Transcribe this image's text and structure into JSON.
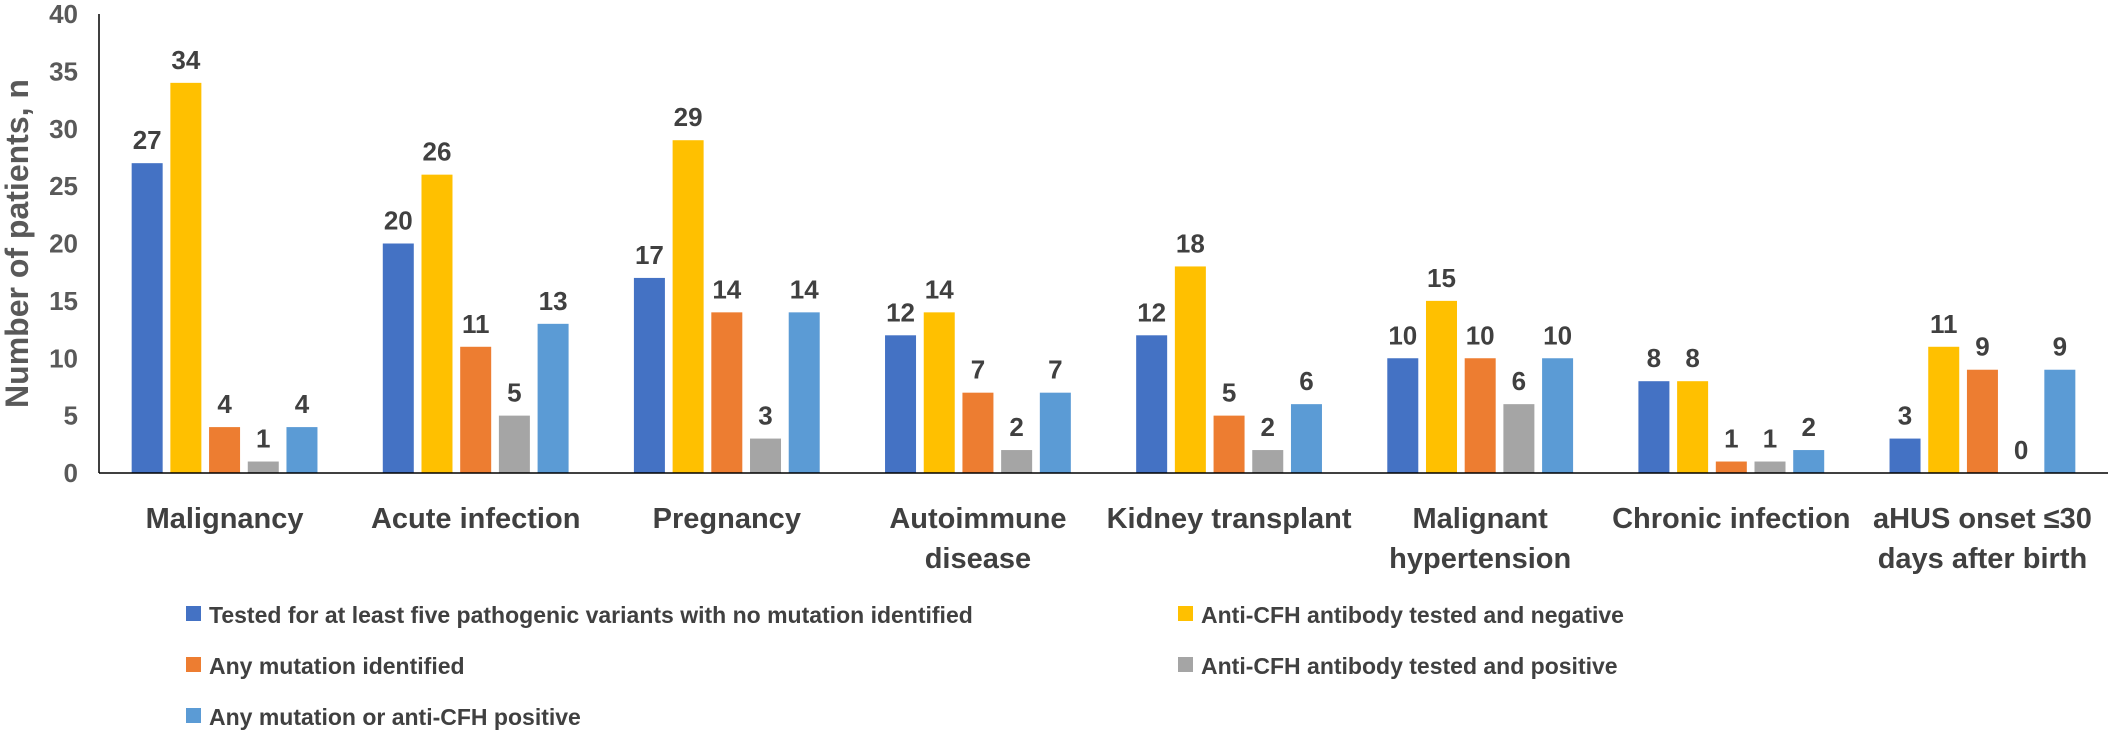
{
  "chart_data": {
    "type": "bar",
    "title": "",
    "xlabel": "",
    "ylabel": "Number of patients, n",
    "ylim": [
      0,
      40
    ],
    "yticks": [
      0,
      5,
      10,
      15,
      20,
      25,
      30,
      35,
      40
    ],
    "grid": false,
    "legend_position": "bottom",
    "categories": [
      [
        "Malignancy"
      ],
      [
        "Acute infection"
      ],
      [
        "Pregnancy"
      ],
      [
        "Autoimmune",
        "disease"
      ],
      [
        "Kidney transplant"
      ],
      [
        "Malignant",
        "hypertension"
      ],
      [
        "Chronic infection"
      ],
      [
        "aHUS onset ≤30",
        "days after birth"
      ]
    ],
    "series": [
      {
        "name": "Tested for at least five pathogenic variants with no mutation identified",
        "color": "#4472C4",
        "values": [
          27,
          20,
          17,
          12,
          12,
          10,
          8,
          3
        ]
      },
      {
        "name": "Anti-CFH antibody tested and negative",
        "color": "#FFC000",
        "values": [
          34,
          26,
          29,
          14,
          18,
          15,
          8,
          11
        ]
      },
      {
        "name": "Any mutation identified",
        "color": "#ED7D31",
        "values": [
          4,
          11,
          14,
          7,
          5,
          10,
          1,
          9
        ]
      },
      {
        "name": "Anti-CFH antibody tested and positive",
        "color": "#A5A5A5",
        "values": [
          1,
          5,
          3,
          2,
          2,
          6,
          1,
          0
        ]
      },
      {
        "name": "Any mutation or anti-CFH positive",
        "color": "#5B9BD5",
        "values": [
          4,
          13,
          14,
          7,
          6,
          10,
          2,
          9
        ]
      }
    ]
  }
}
